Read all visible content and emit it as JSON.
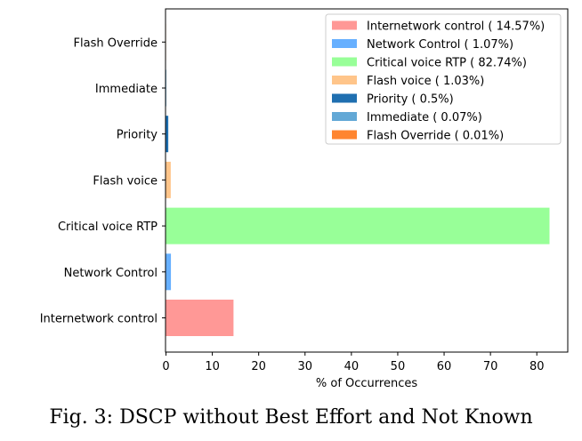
{
  "caption": "Fig. 3: DSCP without Best Effort and Not Known",
  "chart_data": {
    "type": "bar",
    "orientation": "horizontal",
    "title": "",
    "xlabel": "% of Occurrences",
    "ylabel": "",
    "xlim": [
      0,
      86
    ],
    "xticks": [
      0,
      10,
      20,
      30,
      40,
      50,
      60,
      70,
      80
    ],
    "grid": false,
    "legend_position": "top-right",
    "categories": [
      "Internetwork control",
      "Network Control",
      "Critical voice RTP",
      "Flash voice",
      "Priority",
      "Immediate",
      "Flash Override"
    ],
    "values": [
      14.57,
      1.07,
      82.74,
      1.03,
      0.5,
      0.07,
      0.01
    ],
    "colors": [
      "#ff9896",
      "#67b0ff",
      "#98ff98",
      "#ffc58a",
      "#1f6fb0",
      "#62a8d6",
      "#ff8530"
    ],
    "legend": [
      "Internetwork control ( 14.57%)",
      "Network Control ( 1.07%)",
      "Critical voice RTP ( 82.74%)",
      "Flash voice ( 1.03%)",
      "Priority ( 0.5%)",
      "Immediate ( 0.07%)",
      "Flash Override ( 0.01%)"
    ]
  }
}
